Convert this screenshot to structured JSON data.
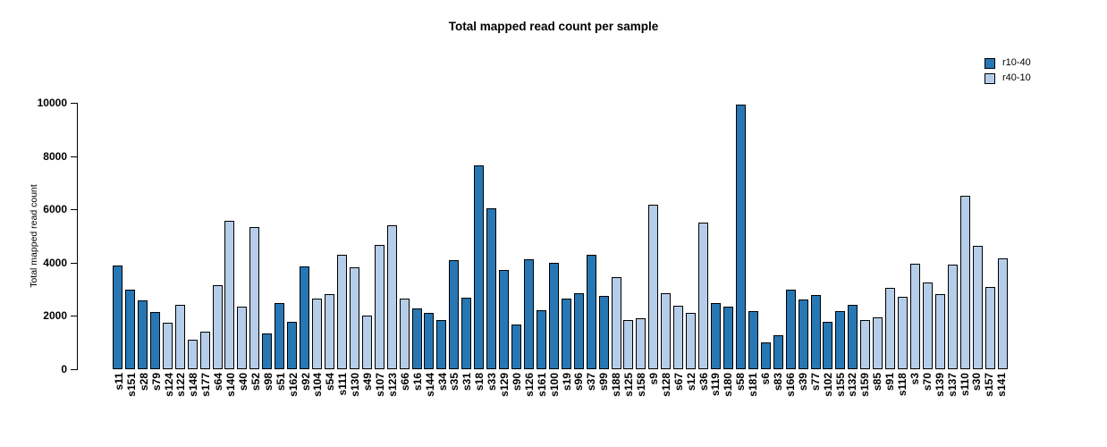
{
  "chart_data": {
    "type": "bar",
    "title": "Total mapped read count per sample",
    "ylabel": "Total mapped read count",
    "xlabel": "",
    "ylim": [
      0,
      10000
    ],
    "yticks": [
      0,
      2000,
      4000,
      6000,
      8000,
      10000
    ],
    "grid": false,
    "legend_position": "top-right",
    "series": [
      {
        "name": "r10-40",
        "color": "#2777b4"
      },
      {
        "name": "r40-10",
        "color": "#b5cde8"
      }
    ],
    "bars": [
      {
        "label": "s11",
        "value": 3880,
        "series": "r10-40"
      },
      {
        "label": "s151",
        "value": 2990,
        "series": "r10-40"
      },
      {
        "label": "s28",
        "value": 2580,
        "series": "r10-40"
      },
      {
        "label": "s79",
        "value": 2140,
        "series": "r10-40"
      },
      {
        "label": "s124",
        "value": 1740,
        "series": "r40-10"
      },
      {
        "label": "s122",
        "value": 2430,
        "series": "r40-10"
      },
      {
        "label": "s148",
        "value": 1110,
        "series": "r40-10"
      },
      {
        "label": "s177",
        "value": 1420,
        "series": "r40-10"
      },
      {
        "label": "s64",
        "value": 3140,
        "series": "r40-10"
      },
      {
        "label": "s140",
        "value": 5580,
        "series": "r40-10"
      },
      {
        "label": "s40",
        "value": 2350,
        "series": "r40-10"
      },
      {
        "label": "s52",
        "value": 5340,
        "series": "r40-10"
      },
      {
        "label": "s98",
        "value": 1350,
        "series": "r10-40"
      },
      {
        "label": "s51",
        "value": 2470,
        "series": "r10-40"
      },
      {
        "label": "s162",
        "value": 1780,
        "series": "r10-40"
      },
      {
        "label": "s92",
        "value": 3850,
        "series": "r10-40"
      },
      {
        "label": "s104",
        "value": 2640,
        "series": "r40-10"
      },
      {
        "label": "s54",
        "value": 2820,
        "series": "r40-10"
      },
      {
        "label": "s111",
        "value": 4300,
        "series": "r40-10"
      },
      {
        "label": "s130",
        "value": 3810,
        "series": "r40-10"
      },
      {
        "label": "s49",
        "value": 2020,
        "series": "r40-10"
      },
      {
        "label": "s107",
        "value": 4680,
        "series": "r40-10"
      },
      {
        "label": "s123",
        "value": 5390,
        "series": "r40-10"
      },
      {
        "label": "s66",
        "value": 2640,
        "series": "r40-10"
      },
      {
        "label": "s16",
        "value": 2270,
        "series": "r10-40"
      },
      {
        "label": "s144",
        "value": 2110,
        "series": "r10-40"
      },
      {
        "label": "s34",
        "value": 1860,
        "series": "r10-40"
      },
      {
        "label": "s35",
        "value": 4090,
        "series": "r10-40"
      },
      {
        "label": "s31",
        "value": 2670,
        "series": "r10-40"
      },
      {
        "label": "s18",
        "value": 7650,
        "series": "r10-40"
      },
      {
        "label": "s33",
        "value": 6030,
        "series": "r10-40"
      },
      {
        "label": "s129",
        "value": 3730,
        "series": "r10-40"
      },
      {
        "label": "s90",
        "value": 1690,
        "series": "r10-40"
      },
      {
        "label": "s126",
        "value": 4130,
        "series": "r10-40"
      },
      {
        "label": "s161",
        "value": 2230,
        "series": "r10-40"
      },
      {
        "label": "s100",
        "value": 3990,
        "series": "r10-40"
      },
      {
        "label": "s19",
        "value": 2640,
        "series": "r10-40"
      },
      {
        "label": "s96",
        "value": 2840,
        "series": "r10-40"
      },
      {
        "label": "s37",
        "value": 4300,
        "series": "r10-40"
      },
      {
        "label": "s99",
        "value": 2750,
        "series": "r10-40"
      },
      {
        "label": "s188",
        "value": 3460,
        "series": "r40-10"
      },
      {
        "label": "s125",
        "value": 1830,
        "series": "r40-10"
      },
      {
        "label": "s158",
        "value": 1910,
        "series": "r40-10"
      },
      {
        "label": "s9",
        "value": 6160,
        "series": "r40-10"
      },
      {
        "label": "s128",
        "value": 2840,
        "series": "r40-10"
      },
      {
        "label": "s67",
        "value": 2380,
        "series": "r40-10"
      },
      {
        "label": "s12",
        "value": 2110,
        "series": "r40-10"
      },
      {
        "label": "s36",
        "value": 5490,
        "series": "r40-10"
      },
      {
        "label": "s119",
        "value": 2480,
        "series": "r10-40"
      },
      {
        "label": "s180",
        "value": 2340,
        "series": "r10-40"
      },
      {
        "label": "s58",
        "value": 9940,
        "series": "r10-40"
      },
      {
        "label": "s181",
        "value": 2170,
        "series": "r10-40"
      },
      {
        "label": "s6",
        "value": 1000,
        "series": "r10-40"
      },
      {
        "label": "s83",
        "value": 1280,
        "series": "r10-40"
      },
      {
        "label": "s166",
        "value": 2980,
        "series": "r10-40"
      },
      {
        "label": "s39",
        "value": 2620,
        "series": "r10-40"
      },
      {
        "label": "s77",
        "value": 2790,
        "series": "r10-40"
      },
      {
        "label": "s102",
        "value": 1790,
        "series": "r10-40"
      },
      {
        "label": "s155",
        "value": 2190,
        "series": "r10-40"
      },
      {
        "label": "s132",
        "value": 2430,
        "series": "r10-40"
      },
      {
        "label": "s159",
        "value": 1850,
        "series": "r40-10"
      },
      {
        "label": "s85",
        "value": 1960,
        "series": "r40-10"
      },
      {
        "label": "s91",
        "value": 3060,
        "series": "r40-10"
      },
      {
        "label": "s118",
        "value": 2720,
        "series": "r40-10"
      },
      {
        "label": "s3",
        "value": 3950,
        "series": "r40-10"
      },
      {
        "label": "s70",
        "value": 3240,
        "series": "r40-10"
      },
      {
        "label": "s139",
        "value": 2830,
        "series": "r40-10"
      },
      {
        "label": "s137",
        "value": 3910,
        "series": "r40-10"
      },
      {
        "label": "s110",
        "value": 6500,
        "series": "r40-10"
      },
      {
        "label": "s30",
        "value": 4620,
        "series": "r40-10"
      },
      {
        "label": "s157",
        "value": 3080,
        "series": "r40-10"
      },
      {
        "label": "s141",
        "value": 4160,
        "series": "r40-10"
      }
    ]
  }
}
